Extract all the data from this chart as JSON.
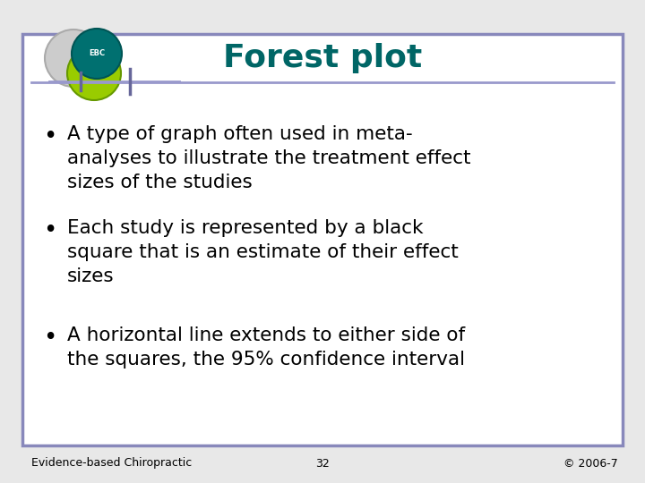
{
  "title": "Forest plot",
  "title_color": "#006666",
  "title_fontsize": 26,
  "border_color": "#8888BB",
  "border_linewidth": 2.5,
  "background_color": "#ffffff",
  "outer_bg": "#e8e8e8",
  "bullet_points": [
    "A type of graph often used in meta-\nanalyses to illustrate the treatment effect\nsizes of the studies",
    "Each study is represented by a black\nsquare that is an estimate of their effect\nsizes",
    "A horizontal line extends to either side of\nthe squares, the 95% confidence interval"
  ],
  "bullet_fontsize": 15.5,
  "bullet_color": "#000000",
  "footer_left": "Evidence-based Chiropractic",
  "footer_center": "32",
  "footer_right": "© 2006-7",
  "footer_fontsize": 9,
  "footer_color": "#000000",
  "separator_color": "#9999cc",
  "logo_gray_color": "#cccccc",
  "logo_gray_edge": "#aaaaaa",
  "logo_green_color": "#99cc00",
  "logo_green_edge": "#669900",
  "logo_teal_color": "#007070",
  "logo_teal_edge": "#005555",
  "mini_line_color": "#9999cc",
  "mini_tick_color": "#666699"
}
